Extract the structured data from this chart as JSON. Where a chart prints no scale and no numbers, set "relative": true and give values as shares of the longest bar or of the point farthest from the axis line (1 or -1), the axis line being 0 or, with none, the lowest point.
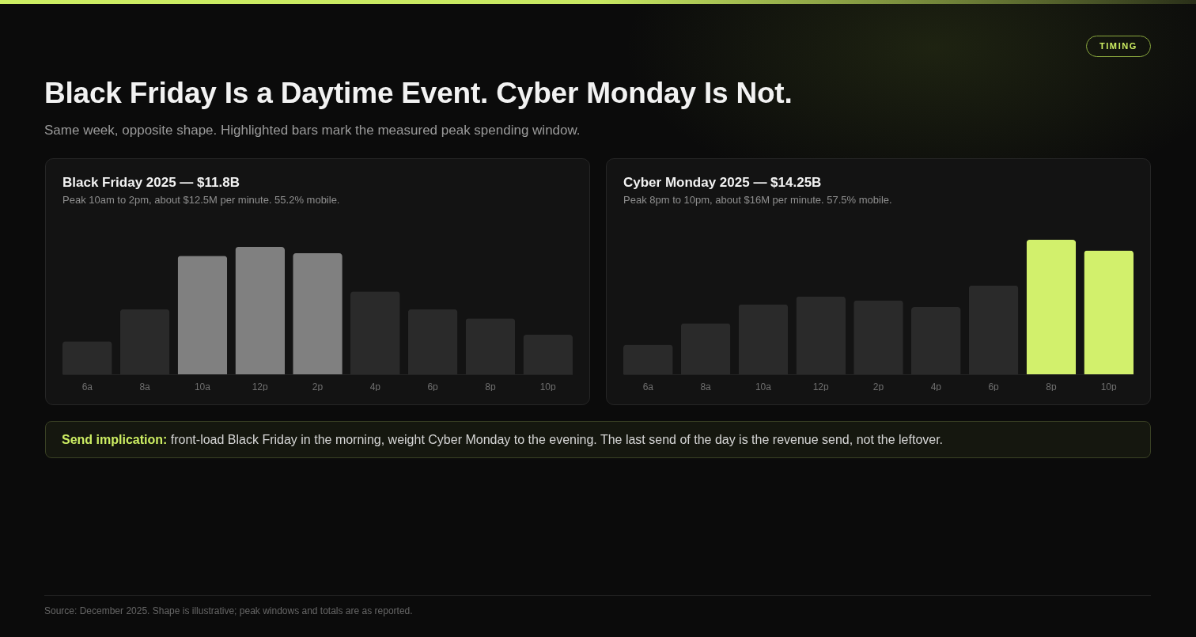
{
  "chart_data": [
    {
      "type": "other",
      "title": "Black Friday Is a Daytime Event. Cyber Monday Is Not.",
      "subtitle": "Same week, opposite shape. Highlighted bars mark the measured peak spending window.",
      "annotations": [
        "TIMING"
      ]
    },
    {
      "type": "bar",
      "title": "Black Friday 2025 — $11.8B",
      "subtitle": "Peak 10am to 2pm, about $12.5M per minute. 55.2% mobile.",
      "categories": [
        "6a",
        "8a",
        "10a",
        "12p",
        "2p",
        "4p",
        "6p",
        "8p",
        "10p"
      ],
      "values": [
        0.26,
        0.51,
        0.93,
        1,
        0.95,
        0.65,
        0.51,
        0.44,
        0.31
      ],
      "colors": [
        "#2a2a2a",
        "#2a2a2a",
        "#808080",
        "#808080",
        "#808080",
        "#2a2a2a",
        "#2a2a2a",
        "#2a2a2a",
        "#2a2a2a"
      ],
      "relative": true
    },
    {
      "type": "bar",
      "title": "Cyber Monday 2025 — $14.25B",
      "subtitle": "Peak 8pm to 10pm, about $16M per minute. 57.5% mobile.",
      "categories": [
        "6a",
        "8a",
        "10a",
        "12p",
        "2p",
        "4p",
        "6p",
        "8p",
        "10p"
      ],
      "values": [
        0.22,
        0.38,
        0.52,
        0.58,
        0.55,
        0.5,
        0.66,
        1,
        0.92
      ],
      "colors": [
        "#2a2a2a",
        "#2a2a2a",
        "#2a2a2a",
        "#2a2a2a",
        "#2a2a2a",
        "#2a2a2a",
        "#2a2a2a",
        "#d2f06c",
        "#d2f06c"
      ],
      "relative": true
    },
    {
      "type": "other",
      "annotations": [
        "Send implication:",
        "front-load Black Friday in the morning, weight Cyber Monday to the evening. The last send of the day is the revenue send, not the leftover."
      ]
    },
    {
      "type": "other",
      "annotations": [
        "Source: December 2025. Shape is illustrative; peak windows and totals are as reported."
      ]
    }
  ]
}
